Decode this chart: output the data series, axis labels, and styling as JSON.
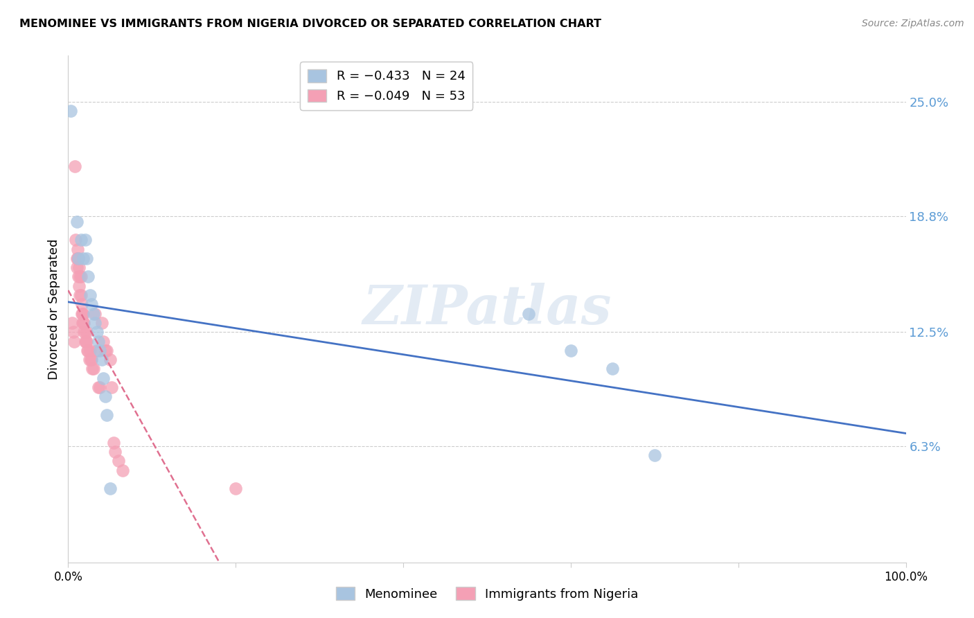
{
  "title": "MENOMINEE VS IMMIGRANTS FROM NIGERIA DIVORCED OR SEPARATED CORRELATION CHART",
  "source": "Source: ZipAtlas.com",
  "ylabel": "Divorced or Separated",
  "right_ytick_labels": [
    "25.0%",
    "18.8%",
    "12.5%",
    "6.3%"
  ],
  "right_ytick_values": [
    0.25,
    0.188,
    0.125,
    0.063
  ],
  "legend_blue_r": "R = −0.433",
  "legend_blue_n": "N = 24",
  "legend_pink_r": "R = −0.049",
  "legend_pink_n": "N = 53",
  "watermark": "ZIPatlas",
  "menominee_x": [
    0.003,
    0.01,
    0.012,
    0.015,
    0.018,
    0.02,
    0.022,
    0.024,
    0.026,
    0.028,
    0.03,
    0.032,
    0.034,
    0.036,
    0.038,
    0.04,
    0.042,
    0.044,
    0.046,
    0.05,
    0.55,
    0.6,
    0.65,
    0.7
  ],
  "menominee_y": [
    0.245,
    0.185,
    0.165,
    0.175,
    0.165,
    0.175,
    0.165,
    0.155,
    0.145,
    0.14,
    0.135,
    0.13,
    0.125,
    0.12,
    0.115,
    0.11,
    0.1,
    0.09,
    0.08,
    0.04,
    0.135,
    0.115,
    0.105,
    0.058
  ],
  "nigeria_x": [
    0.005,
    0.006,
    0.007,
    0.008,
    0.009,
    0.01,
    0.01,
    0.011,
    0.011,
    0.012,
    0.012,
    0.013,
    0.013,
    0.014,
    0.014,
    0.015,
    0.015,
    0.016,
    0.016,
    0.017,
    0.017,
    0.018,
    0.018,
    0.019,
    0.019,
    0.02,
    0.02,
    0.021,
    0.022,
    0.022,
    0.023,
    0.024,
    0.025,
    0.026,
    0.027,
    0.028,
    0.029,
    0.03,
    0.032,
    0.034,
    0.036,
    0.038,
    0.04,
    0.042,
    0.044,
    0.046,
    0.05,
    0.052,
    0.054,
    0.056,
    0.06,
    0.065,
    0.2
  ],
  "nigeria_y": [
    0.13,
    0.125,
    0.12,
    0.215,
    0.175,
    0.165,
    0.16,
    0.17,
    0.165,
    0.165,
    0.155,
    0.16,
    0.15,
    0.155,
    0.145,
    0.155,
    0.145,
    0.14,
    0.135,
    0.135,
    0.13,
    0.135,
    0.13,
    0.13,
    0.125,
    0.125,
    0.12,
    0.12,
    0.125,
    0.12,
    0.115,
    0.115,
    0.11,
    0.115,
    0.11,
    0.11,
    0.105,
    0.105,
    0.135,
    0.115,
    0.095,
    0.095,
    0.13,
    0.12,
    0.115,
    0.115,
    0.11,
    0.095,
    0.065,
    0.06,
    0.055,
    0.05,
    0.04
  ],
  "blue_color": "#a8c4e0",
  "pink_color": "#f4a0b5",
  "blue_line_color": "#4472c4",
  "pink_line_color": "#e07090",
  "grid_color": "#cccccc",
  "right_axis_color": "#5b9bd5",
  "xlim": [
    0,
    1.0
  ],
  "ylim": [
    0.0,
    0.275
  ]
}
